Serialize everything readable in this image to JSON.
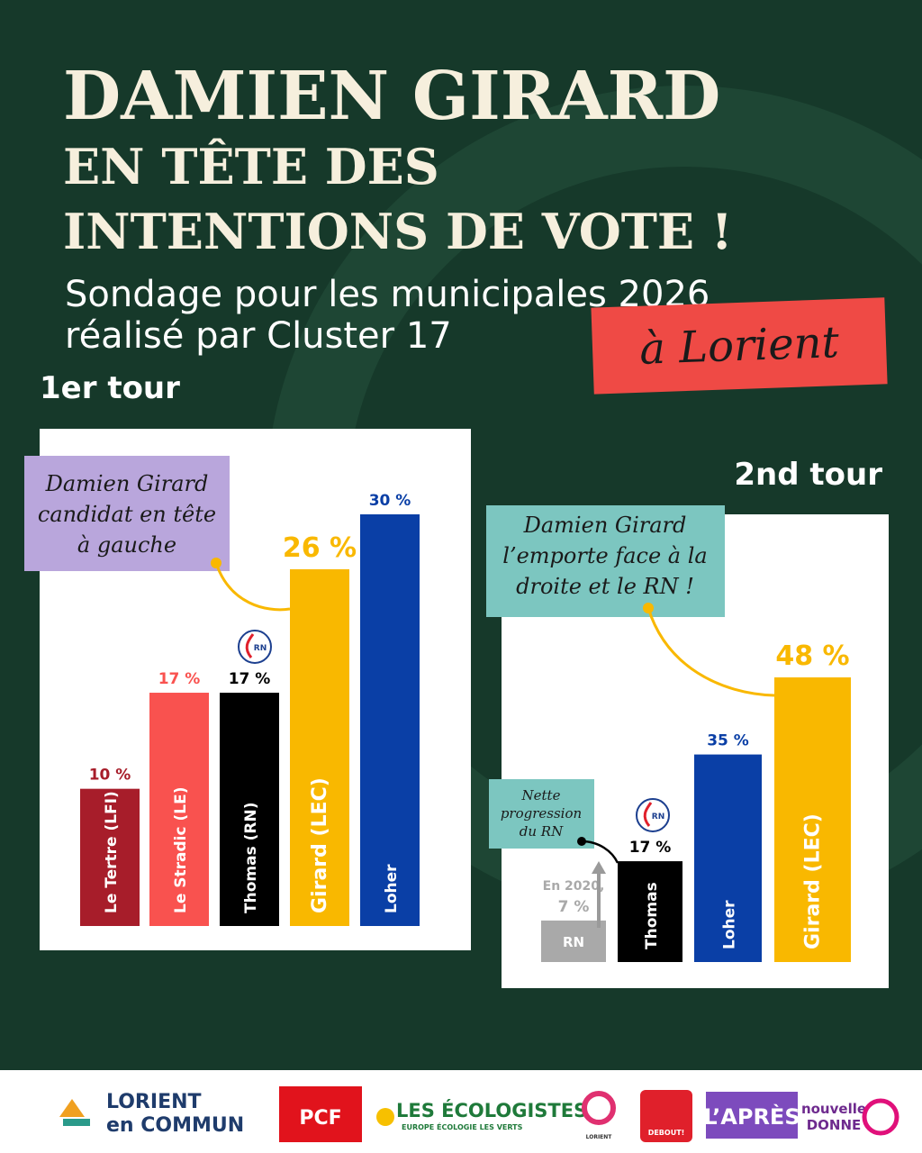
{
  "header": {
    "title_lines": [
      "DAMIEN GIRARD",
      "EN TÊTE DES",
      "INTENTIONS DE VOTE !"
    ],
    "subtitle_lines": [
      "Sondage pour les municipales 2026",
      "réalisé par Cluster 17"
    ],
    "highlight": "à Lorient"
  },
  "chart_data": [
    {
      "type": "bar",
      "title": "1er tour",
      "annotation_lines": [
        "Damien Girard",
        "candidat en tête",
        "à gauche"
      ],
      "categories": [
        "Le Tertre (LFI)",
        "Le Stradic (LE)",
        "Thomas (RN)",
        "Girard (LEC)",
        "Loher"
      ],
      "values": [
        10,
        17,
        17,
        26,
        30
      ],
      "value_labels": [
        "10 %",
        "17 %",
        "17 %",
        "26 %",
        "30 %"
      ],
      "colors": [
        "#a71d2a",
        "#f9524f",
        "#000000",
        "#f9b800",
        "#0a3fa6"
      ],
      "badge": "RN"
    },
    {
      "type": "bar",
      "title": "2nd tour",
      "annotation_lines": [
        "Damien Girard",
        "l’emporte face à la",
        "droite et le RN !"
      ],
      "note_lines": [
        "Nette",
        "progression",
        "du RN"
      ],
      "baseline_note": "En 2020,",
      "categories": [
        "RN",
        "Thomas",
        "Loher",
        "Girard (LEC)"
      ],
      "values": [
        7,
        17,
        35,
        48
      ],
      "value_labels": [
        "7 %",
        "17 %",
        "35 %",
        "48 %"
      ],
      "colors": [
        "#a9a9a9",
        "#000000",
        "#0a3fa6",
        "#f9b800"
      ],
      "badge": "RN"
    }
  ],
  "footer": {
    "logos": [
      "LORIENT",
      "en COMMUN",
      "PCF",
      "LES ÉCOLOGISTES",
      "EUROPE ÉCOLOGIE LES VERTS",
      "LORIENT",
      "DEBOUT!",
      "L’APRÈS",
      "nouvelle",
      "DONNE"
    ]
  }
}
